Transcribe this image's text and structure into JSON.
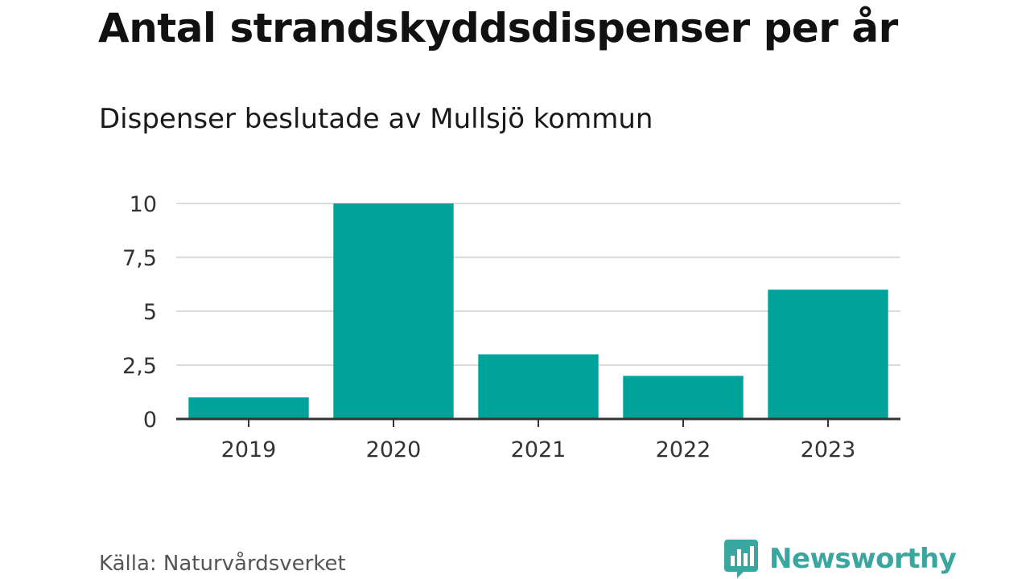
{
  "colors": {
    "bar": "#00a39a",
    "grid": "#dcdcdc",
    "axis": "#333333",
    "logo": "#3aa6a0"
  },
  "chart_data": {
    "type": "bar",
    "title": "Antal strandskyddsdispenser per år",
    "subtitle": "Dispenser beslutade av Mullsjö kommun",
    "categories": [
      "2019",
      "2020",
      "2021",
      "2022",
      "2023"
    ],
    "values": [
      1,
      10,
      3,
      2,
      6
    ],
    "ylim": [
      0,
      10
    ],
    "yticks": [
      0,
      2.5,
      5,
      7.5,
      10
    ],
    "ytick_labels": [
      "0",
      "2,5",
      "5",
      "7,5",
      "10"
    ],
    "xlabel": "",
    "ylabel": "",
    "grid": true
  },
  "footer": {
    "source": "Källa: Naturvårdsverket",
    "logo_text": "Newsworthy",
    "logo_icon": "bar-chart-speech-bubble-icon"
  }
}
